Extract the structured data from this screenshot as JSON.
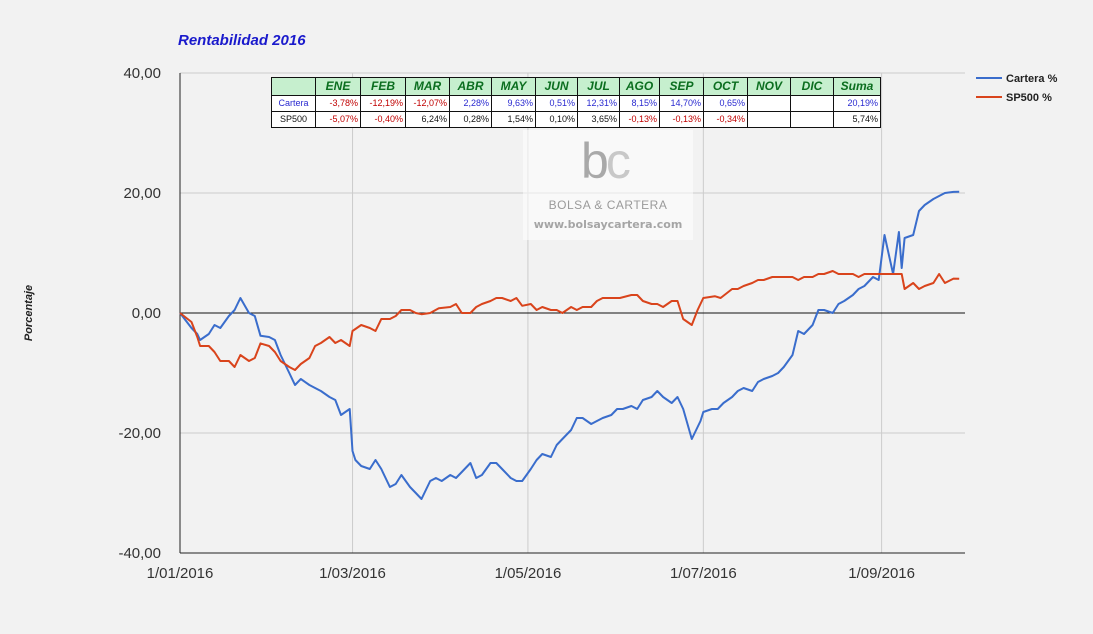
{
  "chart_data": {
    "type": "line",
    "title": "Rentabilidad 2016",
    "ylabel": "Porcentaje",
    "xlabel": "",
    "x_range": [
      "2016-01-01",
      "2016-09-30"
    ],
    "ylim": [
      -40,
      40
    ],
    "y_ticks": [
      40,
      20,
      0,
      -20,
      -40
    ],
    "y_tick_labels": [
      "40,00",
      "20,00",
      "0,00",
      "-20,00",
      "-40,00"
    ],
    "x_ticks": [
      "2016-01-01",
      "2016-03-01",
      "2016-05-01",
      "2016-07-01",
      "2016-09-01"
    ],
    "x_tick_labels": [
      "1/01/2016",
      "1/03/2016",
      "1/05/2016",
      "1/07/2016",
      "1/09/2016"
    ],
    "grid": true,
    "legend_position": "right-top",
    "series": [
      {
        "name": "Cartera %",
        "color": "#3a6dcc",
        "points": [
          [
            "2016-01-01",
            0
          ],
          [
            "2016-01-05",
            -2.5
          ],
          [
            "2016-01-07",
            -3.5
          ],
          [
            "2016-01-08",
            -4.5
          ],
          [
            "2016-01-11",
            -3.5
          ],
          [
            "2016-01-13",
            -2
          ],
          [
            "2016-01-15",
            -2.5
          ],
          [
            "2016-01-18",
            -0.5
          ],
          [
            "2016-01-20",
            0.5
          ],
          [
            "2016-01-22",
            2.5
          ],
          [
            "2016-01-25",
            0
          ],
          [
            "2016-01-27",
            -0.5
          ],
          [
            "2016-01-29",
            -3.8
          ],
          [
            "2016-02-01",
            -4
          ],
          [
            "2016-02-03",
            -4.5
          ],
          [
            "2016-02-05",
            -7
          ],
          [
            "2016-02-08",
            -10
          ],
          [
            "2016-02-10",
            -12
          ],
          [
            "2016-02-12",
            -11
          ],
          [
            "2016-02-15",
            -12
          ],
          [
            "2016-02-17",
            -12.5
          ],
          [
            "2016-02-19",
            -13
          ],
          [
            "2016-02-22",
            -14
          ],
          [
            "2016-02-24",
            -14.5
          ],
          [
            "2016-02-26",
            -17
          ],
          [
            "2016-02-29",
            -16
          ],
          [
            "2016-03-01",
            -23
          ],
          [
            "2016-03-02",
            -24.5
          ],
          [
            "2016-03-04",
            -25.5
          ],
          [
            "2016-03-07",
            -26
          ],
          [
            "2016-03-09",
            -24.5
          ],
          [
            "2016-03-11",
            -26
          ],
          [
            "2016-03-14",
            -29
          ],
          [
            "2016-03-16",
            -28.5
          ],
          [
            "2016-03-18",
            -27
          ],
          [
            "2016-03-21",
            -29
          ],
          [
            "2016-03-23",
            -30
          ],
          [
            "2016-03-25",
            -31
          ],
          [
            "2016-03-28",
            -28
          ],
          [
            "2016-03-30",
            -27.5
          ],
          [
            "2016-04-01",
            -28
          ],
          [
            "2016-04-04",
            -27
          ],
          [
            "2016-04-06",
            -27.5
          ],
          [
            "2016-04-08",
            -26.5
          ],
          [
            "2016-04-11",
            -25
          ],
          [
            "2016-04-13",
            -27.5
          ],
          [
            "2016-04-15",
            -27
          ],
          [
            "2016-04-18",
            -25
          ],
          [
            "2016-04-20",
            -25
          ],
          [
            "2016-04-22",
            -26
          ],
          [
            "2016-04-25",
            -27.5
          ],
          [
            "2016-04-27",
            -28
          ],
          [
            "2016-04-29",
            -28
          ],
          [
            "2016-05-02",
            -26
          ],
          [
            "2016-05-04",
            -24.5
          ],
          [
            "2016-05-06",
            -23.5
          ],
          [
            "2016-05-09",
            -24
          ],
          [
            "2016-05-11",
            -22
          ],
          [
            "2016-05-13",
            -21
          ],
          [
            "2016-05-16",
            -19.5
          ],
          [
            "2016-05-18",
            -17.5
          ],
          [
            "2016-05-20",
            -17.5
          ],
          [
            "2016-05-23",
            -18.5
          ],
          [
            "2016-05-25",
            -18
          ],
          [
            "2016-05-27",
            -17.5
          ],
          [
            "2016-05-30",
            -17
          ],
          [
            "2016-06-01",
            -16
          ],
          [
            "2016-06-03",
            -16
          ],
          [
            "2016-06-06",
            -15.5
          ],
          [
            "2016-06-08",
            -16
          ],
          [
            "2016-06-10",
            -14.5
          ],
          [
            "2016-06-13",
            -14
          ],
          [
            "2016-06-15",
            -13
          ],
          [
            "2016-06-17",
            -14
          ],
          [
            "2016-06-20",
            -15
          ],
          [
            "2016-06-22",
            -14
          ],
          [
            "2016-06-24",
            -16
          ],
          [
            "2016-06-27",
            -21
          ],
          [
            "2016-06-28",
            -20
          ],
          [
            "2016-06-30",
            -18
          ],
          [
            "2016-07-01",
            -16.5
          ],
          [
            "2016-07-04",
            -16
          ],
          [
            "2016-07-06",
            -16
          ],
          [
            "2016-07-08",
            -15
          ],
          [
            "2016-07-11",
            -14
          ],
          [
            "2016-07-13",
            -13
          ],
          [
            "2016-07-15",
            -12.5
          ],
          [
            "2016-07-18",
            -13
          ],
          [
            "2016-07-20",
            -11.5
          ],
          [
            "2016-07-22",
            -11
          ],
          [
            "2016-07-25",
            -10.5
          ],
          [
            "2016-07-27",
            -10
          ],
          [
            "2016-07-29",
            -9
          ],
          [
            "2016-08-01",
            -7
          ],
          [
            "2016-08-03",
            -3
          ],
          [
            "2016-08-05",
            -3.5
          ],
          [
            "2016-08-08",
            -2
          ],
          [
            "2016-08-10",
            0.5
          ],
          [
            "2016-08-12",
            0.5
          ],
          [
            "2016-08-15",
            0
          ],
          [
            "2016-08-17",
            1.5
          ],
          [
            "2016-08-19",
            2
          ],
          [
            "2016-08-22",
            3
          ],
          [
            "2016-08-24",
            4
          ],
          [
            "2016-08-26",
            4.5
          ],
          [
            "2016-08-29",
            6
          ],
          [
            "2016-08-31",
            5.5
          ],
          [
            "2016-09-02",
            13
          ],
          [
            "2016-09-05",
            6.5
          ],
          [
            "2016-09-07",
            13.5
          ],
          [
            "2016-09-08",
            7.5
          ],
          [
            "2016-09-09",
            12.5
          ],
          [
            "2016-09-12",
            13
          ],
          [
            "2016-09-14",
            17
          ],
          [
            "2016-09-16",
            18
          ],
          [
            "2016-09-19",
            19
          ],
          [
            "2016-09-21",
            19.5
          ],
          [
            "2016-09-23",
            20
          ],
          [
            "2016-09-26",
            20.19
          ],
          [
            "2016-09-28",
            20.2
          ]
        ]
      },
      {
        "name": "SP500 %",
        "color": "#d9441c",
        "points": [
          [
            "2016-01-01",
            0
          ],
          [
            "2016-01-05",
            -1.5
          ],
          [
            "2016-01-07",
            -4
          ],
          [
            "2016-01-08",
            -5.5
          ],
          [
            "2016-01-11",
            -5.5
          ],
          [
            "2016-01-13",
            -6.5
          ],
          [
            "2016-01-15",
            -8
          ],
          [
            "2016-01-18",
            -8
          ],
          [
            "2016-01-20",
            -9
          ],
          [
            "2016-01-22",
            -7
          ],
          [
            "2016-01-25",
            -8
          ],
          [
            "2016-01-27",
            -7.5
          ],
          [
            "2016-01-29",
            -5.07
          ],
          [
            "2016-02-01",
            -5.5
          ],
          [
            "2016-02-03",
            -6.5
          ],
          [
            "2016-02-05",
            -8
          ],
          [
            "2016-02-08",
            -9
          ],
          [
            "2016-02-10",
            -9.5
          ],
          [
            "2016-02-12",
            -8.5
          ],
          [
            "2016-02-15",
            -7.5
          ],
          [
            "2016-02-17",
            -5.5
          ],
          [
            "2016-02-19",
            -5
          ],
          [
            "2016-02-22",
            -4
          ],
          [
            "2016-02-24",
            -5
          ],
          [
            "2016-02-26",
            -4.5
          ],
          [
            "2016-02-29",
            -5.5
          ],
          [
            "2016-03-01",
            -3
          ],
          [
            "2016-03-04",
            -2
          ],
          [
            "2016-03-07",
            -2.5
          ],
          [
            "2016-03-09",
            -3
          ],
          [
            "2016-03-11",
            -1
          ],
          [
            "2016-03-14",
            -1
          ],
          [
            "2016-03-16",
            -0.5
          ],
          [
            "2016-03-18",
            0.5
          ],
          [
            "2016-03-21",
            0.5
          ],
          [
            "2016-03-23",
            0
          ],
          [
            "2016-03-25",
            -0.2
          ],
          [
            "2016-03-28",
            0
          ],
          [
            "2016-03-31",
            0.8
          ],
          [
            "2016-04-04",
            1
          ],
          [
            "2016-04-06",
            1.5
          ],
          [
            "2016-04-08",
            0
          ],
          [
            "2016-04-11",
            0
          ],
          [
            "2016-04-13",
            1
          ],
          [
            "2016-04-15",
            1.5
          ],
          [
            "2016-04-18",
            2
          ],
          [
            "2016-04-20",
            2.5
          ],
          [
            "2016-04-22",
            2.5
          ],
          [
            "2016-04-25",
            2
          ],
          [
            "2016-04-27",
            2.5
          ],
          [
            "2016-04-29",
            1.2
          ],
          [
            "2016-05-02",
            1.5
          ],
          [
            "2016-05-04",
            0.5
          ],
          [
            "2016-05-06",
            1
          ],
          [
            "2016-05-09",
            0.5
          ],
          [
            "2016-05-11",
            0.5
          ],
          [
            "2016-05-13",
            0
          ],
          [
            "2016-05-16",
            1
          ],
          [
            "2016-05-18",
            0.5
          ],
          [
            "2016-05-20",
            1
          ],
          [
            "2016-05-23",
            1
          ],
          [
            "2016-05-25",
            2
          ],
          [
            "2016-05-27",
            2.5
          ],
          [
            "2016-05-31",
            2.5
          ],
          [
            "2016-06-02",
            2.5
          ],
          [
            "2016-06-06",
            3
          ],
          [
            "2016-06-08",
            3
          ],
          [
            "2016-06-10",
            2
          ],
          [
            "2016-06-13",
            1.5
          ],
          [
            "2016-06-15",
            1.5
          ],
          [
            "2016-06-17",
            1
          ],
          [
            "2016-06-20",
            2
          ],
          [
            "2016-06-22",
            2
          ],
          [
            "2016-06-24",
            -1
          ],
          [
            "2016-06-27",
            -2
          ],
          [
            "2016-06-29",
            0.5
          ],
          [
            "2016-07-01",
            2.5
          ],
          [
            "2016-07-05",
            2.8
          ],
          [
            "2016-07-07",
            2.5
          ],
          [
            "2016-07-11",
            4
          ],
          [
            "2016-07-13",
            4
          ],
          [
            "2016-07-15",
            4.5
          ],
          [
            "2016-07-18",
            5
          ],
          [
            "2016-07-20",
            5.5
          ],
          [
            "2016-07-22",
            5.5
          ],
          [
            "2016-07-25",
            6
          ],
          [
            "2016-07-27",
            6
          ],
          [
            "2016-07-29",
            6
          ],
          [
            "2016-08-01",
            6
          ],
          [
            "2016-08-03",
            5.5
          ],
          [
            "2016-08-05",
            6
          ],
          [
            "2016-08-08",
            6
          ],
          [
            "2016-08-10",
            6.5
          ],
          [
            "2016-08-12",
            6.5
          ],
          [
            "2016-08-15",
            7
          ],
          [
            "2016-08-17",
            6.5
          ],
          [
            "2016-08-19",
            6.5
          ],
          [
            "2016-08-22",
            6.5
          ],
          [
            "2016-08-24",
            6
          ],
          [
            "2016-08-26",
            6.5
          ],
          [
            "2016-08-29",
            6.5
          ],
          [
            "2016-08-31",
            6.5
          ],
          [
            "2016-09-02",
            6.5
          ],
          [
            "2016-09-06",
            6.5
          ],
          [
            "2016-09-08",
            6.5
          ],
          [
            "2016-09-09",
            4
          ],
          [
            "2016-09-12",
            5
          ],
          [
            "2016-09-14",
            4
          ],
          [
            "2016-09-16",
            4.5
          ],
          [
            "2016-09-19",
            5
          ],
          [
            "2016-09-21",
            6.5
          ],
          [
            "2016-09-23",
            5
          ],
          [
            "2016-09-26",
            5.74
          ],
          [
            "2016-09-28",
            5.7
          ]
        ]
      }
    ]
  },
  "table": {
    "columns": [
      "ENE",
      "FEB",
      "MAR",
      "ABR",
      "MAY",
      "JUN",
      "JUL",
      "AGO",
      "SEP",
      "OCT",
      "NOV",
      "DIC",
      "Suma"
    ],
    "rows": [
      {
        "label": "Cartera",
        "cells": [
          "-3,78%",
          "-12,19%",
          "-12,07%",
          "2,28%",
          "9,63%",
          "0,51%",
          "12,31%",
          "8,15%",
          "14,70%",
          "0,65%",
          "",
          "",
          "20,19%"
        ]
      },
      {
        "label": "SP500",
        "cells": [
          "-5,07%",
          "-0,40%",
          "6,24%",
          "0,28%",
          "1,54%",
          "0,10%",
          "3,65%",
          "-0,13%",
          "-0,13%",
          "-0,34%",
          "",
          "",
          "5,74%"
        ]
      }
    ]
  },
  "watermark": {
    "logo_b": "b",
    "logo_c": "c",
    "name": "BOLSA & CARTERA",
    "url": "www.bolsaycartera.com"
  }
}
